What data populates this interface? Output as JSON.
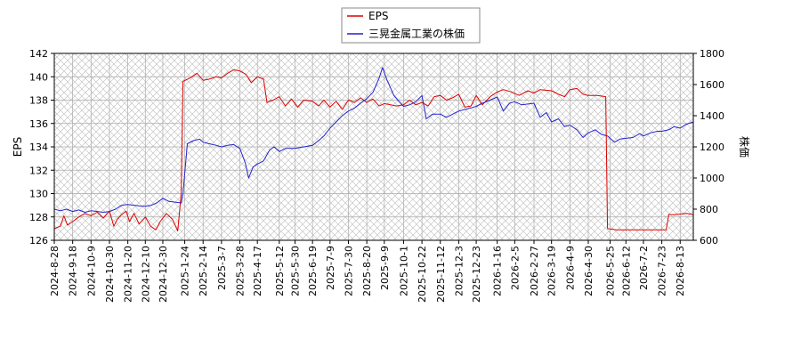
{
  "chart_data": {
    "type": "line",
    "title": "",
    "xlabel": "",
    "y_left_label": "EPS",
    "y_right_label": "株価",
    "y_left_lim": [
      126,
      142
    ],
    "y_left_ticks": [
      126,
      128,
      130,
      132,
      134,
      136,
      138,
      140,
      142
    ],
    "y_right_lim": [
      600,
      1800
    ],
    "y_right_ticks": [
      600,
      800,
      1000,
      1200,
      1400,
      1600,
      1800
    ],
    "x_lim": [
      "2024-08-28",
      "2026-08-28"
    ],
    "x_ticks": [
      "2024-8-28",
      "2024-9-18",
      "2024-10-9",
      "2024-10-30",
      "2024-11-20",
      "2024-12-10",
      "2024-12-30",
      "2025-1-24",
      "2025-2-14",
      "2025-3-7",
      "2025-3-28",
      "2025-4-17",
      "2025-5-12",
      "2025-5-30",
      "2025-6-19",
      "2025-7-9",
      "2025-7-30",
      "2025-8-20",
      "2025-9-9",
      "2025-10-1",
      "2025-10-22",
      "2025-11-12",
      "2025-12-3",
      "2025-12-23",
      "2026-1-16",
      "2026-2-5",
      "2026-2-27",
      "2026-3-19",
      "2026-4-9",
      "2026-4-30",
      "2026-5-25",
      "2026-6-12",
      "2026-7-2",
      "2026-7-23",
      "2026-8-13"
    ],
    "grid": true,
    "legend_position": "top-center",
    "colors": {
      "eps": "#dd0000",
      "price": "#2222cc",
      "grid": "#aaaaaa"
    },
    "series": [
      {
        "name": "EPS",
        "axis": "left",
        "points": [
          [
            "2024-08-28",
            127.0
          ],
          [
            "2024-09-04",
            127.2
          ],
          [
            "2024-09-08",
            128.1
          ],
          [
            "2024-09-12",
            127.3
          ],
          [
            "2024-09-18",
            127.6
          ],
          [
            "2024-09-25",
            128.0
          ],
          [
            "2024-10-02",
            128.3
          ],
          [
            "2024-10-09",
            128.1
          ],
          [
            "2024-10-16",
            128.4
          ],
          [
            "2024-10-23",
            127.9
          ],
          [
            "2024-10-30",
            128.5
          ],
          [
            "2024-11-04",
            127.2
          ],
          [
            "2024-11-08",
            127.8
          ],
          [
            "2024-11-13",
            128.2
          ],
          [
            "2024-11-18",
            128.5
          ],
          [
            "2024-11-22",
            127.6
          ],
          [
            "2024-11-27",
            128.3
          ],
          [
            "2024-12-03",
            127.4
          ],
          [
            "2024-12-10",
            128.0
          ],
          [
            "2024-12-16",
            127.2
          ],
          [
            "2024-12-22",
            126.9
          ],
          [
            "2024-12-27",
            127.6
          ],
          [
            "2025-01-03",
            128.3
          ],
          [
            "2025-01-10",
            127.8
          ],
          [
            "2025-01-16",
            126.8
          ],
          [
            "2025-01-20",
            130.0
          ],
          [
            "2025-01-22",
            139.6
          ],
          [
            "2025-01-30",
            139.9
          ],
          [
            "2025-02-07",
            140.3
          ],
          [
            "2025-02-14",
            139.7
          ],
          [
            "2025-02-21",
            139.8
          ],
          [
            "2025-03-01",
            140.0
          ],
          [
            "2025-03-07",
            139.9
          ],
          [
            "2025-03-14",
            140.3
          ],
          [
            "2025-03-21",
            140.6
          ],
          [
            "2025-03-28",
            140.5
          ],
          [
            "2025-04-04",
            140.2
          ],
          [
            "2025-04-10",
            139.5
          ],
          [
            "2025-04-17",
            140.0
          ],
          [
            "2025-04-24",
            139.8
          ],
          [
            "2025-04-28",
            137.8
          ],
          [
            "2025-05-05",
            138.0
          ],
          [
            "2025-05-12",
            138.3
          ],
          [
            "2025-05-19",
            137.5
          ],
          [
            "2025-05-26",
            138.1
          ],
          [
            "2025-06-02",
            137.4
          ],
          [
            "2025-06-09",
            138.0
          ],
          [
            "2025-06-19",
            137.9
          ],
          [
            "2025-06-26",
            137.5
          ],
          [
            "2025-07-02",
            138.0
          ],
          [
            "2025-07-09",
            137.4
          ],
          [
            "2025-07-16",
            137.9
          ],
          [
            "2025-07-23",
            137.2
          ],
          [
            "2025-07-30",
            138.0
          ],
          [
            "2025-08-06",
            137.8
          ],
          [
            "2025-08-13",
            138.2
          ],
          [
            "2025-08-20",
            137.8
          ],
          [
            "2025-08-27",
            138.1
          ],
          [
            "2025-09-03",
            137.5
          ],
          [
            "2025-09-09",
            137.7
          ],
          [
            "2025-09-16",
            137.6
          ],
          [
            "2025-09-23",
            137.5
          ],
          [
            "2025-10-01",
            137.6
          ],
          [
            "2025-10-08",
            138.0
          ],
          [
            "2025-10-15",
            137.6
          ],
          [
            "2025-10-22",
            137.8
          ],
          [
            "2025-10-29",
            137.5
          ],
          [
            "2025-11-05",
            138.3
          ],
          [
            "2025-11-12",
            138.4
          ],
          [
            "2025-11-19",
            138.0
          ],
          [
            "2025-11-26",
            138.2
          ],
          [
            "2025-12-03",
            138.5
          ],
          [
            "2025-12-10",
            137.4
          ],
          [
            "2025-12-17",
            137.5
          ],
          [
            "2025-12-23",
            138.4
          ],
          [
            "2025-12-30",
            137.6
          ],
          [
            "2026-01-08",
            138.3
          ],
          [
            "2026-01-16",
            138.7
          ],
          [
            "2026-01-23",
            138.9
          ],
          [
            "2026-02-01",
            138.7
          ],
          [
            "2026-02-10",
            138.4
          ],
          [
            "2026-02-20",
            138.8
          ],
          [
            "2026-02-27",
            138.6
          ],
          [
            "2026-03-06",
            138.9
          ],
          [
            "2026-03-19",
            138.8
          ],
          [
            "2026-03-27",
            138.5
          ],
          [
            "2026-04-03",
            138.3
          ],
          [
            "2026-04-09",
            138.9
          ],
          [
            "2026-04-17",
            139.0
          ],
          [
            "2026-04-24",
            138.5
          ],
          [
            "2026-04-30",
            138.4
          ],
          [
            "2026-05-10",
            138.4
          ],
          [
            "2026-05-20",
            138.3
          ],
          [
            "2026-05-22",
            127.0
          ],
          [
            "2026-06-01",
            126.9
          ],
          [
            "2026-06-12",
            126.9
          ],
          [
            "2026-06-22",
            126.9
          ],
          [
            "2026-07-02",
            126.9
          ],
          [
            "2026-07-12",
            126.9
          ],
          [
            "2026-07-23",
            126.9
          ],
          [
            "2026-07-28",
            126.9
          ],
          [
            "2026-07-31",
            128.2
          ],
          [
            "2026-08-08",
            128.2
          ],
          [
            "2026-08-20",
            128.3
          ],
          [
            "2026-08-28",
            128.2
          ]
        ]
      },
      {
        "name": "三晃金属工業の株価",
        "axis": "right",
        "points": [
          [
            "2024-08-28",
            800
          ],
          [
            "2024-09-04",
            790
          ],
          [
            "2024-09-11",
            800
          ],
          [
            "2024-09-18",
            785
          ],
          [
            "2024-09-25",
            795
          ],
          [
            "2024-10-02",
            780
          ],
          [
            "2024-10-09",
            790
          ],
          [
            "2024-10-16",
            785
          ],
          [
            "2024-10-23",
            780
          ],
          [
            "2024-10-30",
            785
          ],
          [
            "2024-11-06",
            800
          ],
          [
            "2024-11-13",
            825
          ],
          [
            "2024-11-20",
            830
          ],
          [
            "2024-11-27",
            825
          ],
          [
            "2024-12-04",
            820
          ],
          [
            "2024-12-10",
            818
          ],
          [
            "2024-12-17",
            825
          ],
          [
            "2024-12-23",
            840
          ],
          [
            "2024-12-30",
            870
          ],
          [
            "2025-01-06",
            850
          ],
          [
            "2025-01-13",
            845
          ],
          [
            "2025-01-20",
            840
          ],
          [
            "2025-01-22",
            900
          ],
          [
            "2025-01-27",
            1220
          ],
          [
            "2025-02-03",
            1240
          ],
          [
            "2025-02-10",
            1250
          ],
          [
            "2025-02-14",
            1230
          ],
          [
            "2025-02-21",
            1220
          ],
          [
            "2025-03-01",
            1210
          ],
          [
            "2025-03-07",
            1200
          ],
          [
            "2025-03-14",
            1210
          ],
          [
            "2025-03-21",
            1215
          ],
          [
            "2025-03-28",
            1190
          ],
          [
            "2025-04-03",
            1100
          ],
          [
            "2025-04-07",
            1000
          ],
          [
            "2025-04-12",
            1070
          ],
          [
            "2025-04-17",
            1090
          ],
          [
            "2025-04-24",
            1110
          ],
          [
            "2025-05-01",
            1180
          ],
          [
            "2025-05-06",
            1200
          ],
          [
            "2025-05-12",
            1170
          ],
          [
            "2025-05-19",
            1190
          ],
          [
            "2025-05-30",
            1190
          ],
          [
            "2025-06-09",
            1200
          ],
          [
            "2025-06-19",
            1210
          ],
          [
            "2025-06-26",
            1240
          ],
          [
            "2025-07-02",
            1270
          ],
          [
            "2025-07-09",
            1320
          ],
          [
            "2025-07-16",
            1360
          ],
          [
            "2025-07-23",
            1400
          ],
          [
            "2025-07-30",
            1430
          ],
          [
            "2025-08-06",
            1450
          ],
          [
            "2025-08-13",
            1480
          ],
          [
            "2025-08-20",
            1510
          ],
          [
            "2025-08-27",
            1550
          ],
          [
            "2025-09-03",
            1640
          ],
          [
            "2025-09-07",
            1710
          ],
          [
            "2025-09-12",
            1630
          ],
          [
            "2025-09-20",
            1530
          ],
          [
            "2025-09-26",
            1490
          ],
          [
            "2025-10-01",
            1460
          ],
          [
            "2025-10-08",
            1470
          ],
          [
            "2025-10-15",
            1490
          ],
          [
            "2025-10-22",
            1530
          ],
          [
            "2025-10-27",
            1380
          ],
          [
            "2025-11-03",
            1410
          ],
          [
            "2025-11-12",
            1410
          ],
          [
            "2025-11-19",
            1390
          ],
          [
            "2025-11-26",
            1410
          ],
          [
            "2025-12-03",
            1430
          ],
          [
            "2025-12-10",
            1440
          ],
          [
            "2025-12-17",
            1450
          ],
          [
            "2025-12-23",
            1460
          ],
          [
            "2025-12-30",
            1480
          ],
          [
            "2026-01-08",
            1500
          ],
          [
            "2026-01-16",
            1520
          ],
          [
            "2026-01-23",
            1430
          ],
          [
            "2026-01-30",
            1480
          ],
          [
            "2026-02-05",
            1490
          ],
          [
            "2026-02-13",
            1470
          ],
          [
            "2026-02-27",
            1480
          ],
          [
            "2026-03-06",
            1390
          ],
          [
            "2026-03-13",
            1420
          ],
          [
            "2026-03-19",
            1360
          ],
          [
            "2026-03-27",
            1380
          ],
          [
            "2026-04-03",
            1330
          ],
          [
            "2026-04-09",
            1340
          ],
          [
            "2026-04-17",
            1310
          ],
          [
            "2026-04-24",
            1260
          ],
          [
            "2026-04-30",
            1290
          ],
          [
            "2026-05-08",
            1310
          ],
          [
            "2026-05-15",
            1280
          ],
          [
            "2026-05-22",
            1270
          ],
          [
            "2026-05-30",
            1230
          ],
          [
            "2026-06-05",
            1250
          ],
          [
            "2026-06-12",
            1255
          ],
          [
            "2026-06-20",
            1260
          ],
          [
            "2026-06-28",
            1285
          ],
          [
            "2026-07-02",
            1270
          ],
          [
            "2026-07-10",
            1290
          ],
          [
            "2026-07-18",
            1300
          ],
          [
            "2026-07-23",
            1300
          ],
          [
            "2026-07-31",
            1310
          ],
          [
            "2026-08-06",
            1330
          ],
          [
            "2026-08-13",
            1320
          ],
          [
            "2026-08-20",
            1345
          ],
          [
            "2026-08-28",
            1360
          ]
        ]
      }
    ]
  }
}
